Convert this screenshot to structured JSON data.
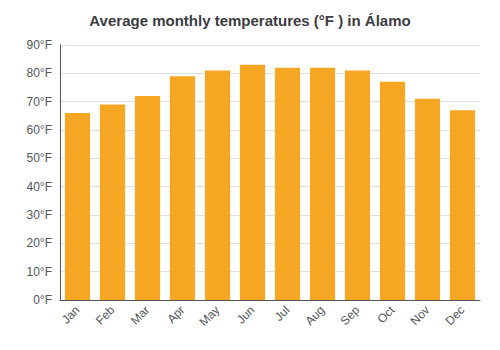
{
  "chart_data": {
    "type": "bar",
    "title": "Average monthly temperatures (°F ) in Álamo",
    "categories": [
      "Jan",
      "Feb",
      "Mar",
      "Apr",
      "May",
      "Jun",
      "Jul",
      "Aug",
      "Sep",
      "Oct",
      "Nov",
      "Dec"
    ],
    "values": [
      66,
      69,
      72,
      79,
      81,
      83,
      82,
      82,
      81,
      77,
      71,
      67
    ],
    "color": "#F5A623",
    "ylim": [
      0,
      90
    ],
    "yticks": [
      {
        "value": 0,
        "label": "0°F"
      },
      {
        "value": 10,
        "label": "10°F"
      },
      {
        "value": 20,
        "label": "20°F"
      },
      {
        "value": 30,
        "label": "30°F"
      },
      {
        "value": 40,
        "label": "40°F"
      },
      {
        "value": 50,
        "label": "50°F"
      },
      {
        "value": 60,
        "label": "60°F"
      },
      {
        "value": 70,
        "label": "70°F"
      },
      {
        "value": 80,
        "label": "80°F"
      },
      {
        "value": 90,
        "label": "90°F"
      }
    ],
    "grid": true
  }
}
